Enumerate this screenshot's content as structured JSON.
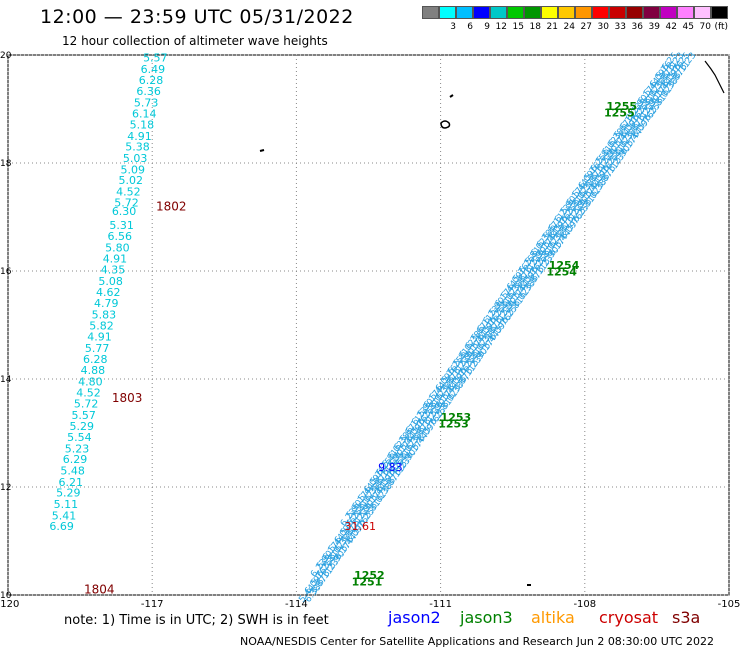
{
  "header": {
    "title": "12:00 — 23:59 UTC 05/31/2022",
    "subtitle": "12 hour collection of altimeter wave heights"
  },
  "colorbar": {
    "colors": [
      "#808080",
      "#00ffff",
      "#00bfff",
      "#0000ff",
      "#00c8c8",
      "#00c800",
      "#009600",
      "#ffff00",
      "#ffc800",
      "#ff9600",
      "#ff0000",
      "#c80000",
      "#960000",
      "#800040",
      "#c000c0",
      "#ff80ff",
      "#ffc0ff",
      "#000000"
    ],
    "labels": [
      "",
      "3",
      "6",
      "9",
      "12",
      "15",
      "18",
      "21",
      "24",
      "27",
      "30",
      "33",
      "36",
      "39",
      "42",
      "45",
      "70",
      "(ft)"
    ]
  },
  "note": "note:  1) Time is in UTC;  2) SWH is in feet",
  "legend": [
    {
      "label": "jason2",
      "color": "#0000ff"
    },
    {
      "label": "jason3",
      "color": "#008000"
    },
    {
      "label": "altika",
      "color": "#ff9900"
    },
    {
      "label": "cryosat",
      "color": "#cc0000"
    },
    {
      "label": "s3a",
      "color": "#800000"
    }
  ],
  "footer": "NOAA/NESDIS Center for Satellite Applications and Research    Jun  2 08:30:00 UTC 2022",
  "chart_data": {
    "type": "scatter",
    "xlim": [
      -120,
      -105
    ],
    "ylim": [
      10,
      20
    ],
    "x_ticks": [
      {
        "value": -120,
        "label": "-120"
      },
      {
        "value": -117,
        "label": "-117"
      },
      {
        "value": -114,
        "label": "-114"
      },
      {
        "value": -111,
        "label": "-111"
      },
      {
        "value": -108,
        "label": "-108"
      },
      {
        "value": -105,
        "label": "-105"
      }
    ],
    "y_ticks": [
      {
        "value": 10,
        "label": "10"
      },
      {
        "value": 12,
        "label": "12"
      },
      {
        "value": 14,
        "label": "14"
      },
      {
        "value": 16,
        "label": "16"
      },
      {
        "value": 18,
        "label": "18"
      },
      {
        "value": 20,
        "label": "20"
      }
    ],
    "grid": "dotted",
    "track_left": {
      "color": "#00c8d8",
      "points": [
        {
          "lon": -117.19,
          "lat": 19.88,
          "value": "5.57"
        },
        {
          "lon": -117.24,
          "lat": 19.67,
          "value": "6.49"
        },
        {
          "lon": -117.28,
          "lat": 19.46,
          "value": "6.28"
        },
        {
          "lon": -117.33,
          "lat": 19.26,
          "value": "6.36"
        },
        {
          "lon": -117.38,
          "lat": 19.05,
          "value": "5.73"
        },
        {
          "lon": -117.42,
          "lat": 18.84,
          "value": "6.14"
        },
        {
          "lon": -117.47,
          "lat": 18.64,
          "value": "5.18"
        },
        {
          "lon": -117.52,
          "lat": 18.43,
          "value": "4.91"
        },
        {
          "lon": -117.56,
          "lat": 18.23,
          "value": "5.38"
        },
        {
          "lon": -117.61,
          "lat": 18.02,
          "value": "5.03"
        },
        {
          "lon": -117.66,
          "lat": 17.81,
          "value": "5.09"
        },
        {
          "lon": -117.7,
          "lat": 17.61,
          "value": "5.02"
        },
        {
          "lon": -117.75,
          "lat": 17.4,
          "value": "4.52"
        },
        {
          "lon": -117.79,
          "lat": 17.19,
          "value": "5.72"
        },
        {
          "lon": -117.84,
          "lat": 17.04,
          "value": "6.30"
        },
        {
          "lon": -117.89,
          "lat": 16.78,
          "value": "5.31"
        },
        {
          "lon": -117.93,
          "lat": 16.57,
          "value": "6.56"
        },
        {
          "lon": -117.98,
          "lat": 16.36,
          "value": "5.80"
        },
        {
          "lon": -118.03,
          "lat": 16.16,
          "value": "4.91"
        },
        {
          "lon": -118.07,
          "lat": 15.95,
          "value": "4.35"
        },
        {
          "lon": -118.12,
          "lat": 15.74,
          "value": "5.08"
        },
        {
          "lon": -118.17,
          "lat": 15.54,
          "value": "4.62"
        },
        {
          "lon": -118.21,
          "lat": 15.33,
          "value": "4.79"
        },
        {
          "lon": -118.26,
          "lat": 15.12,
          "value": "5.83"
        },
        {
          "lon": -118.31,
          "lat": 14.92,
          "value": "5.82"
        },
        {
          "lon": -118.35,
          "lat": 14.71,
          "value": "4.91"
        },
        {
          "lon": -118.4,
          "lat": 14.5,
          "value": "5.77"
        },
        {
          "lon": -118.44,
          "lat": 14.3,
          "value": "6.28"
        },
        {
          "lon": -118.49,
          "lat": 14.09,
          "value": "4.88"
        },
        {
          "lon": -118.54,
          "lat": 13.88,
          "value": "4.80"
        },
        {
          "lon": -118.58,
          "lat": 13.68,
          "value": "4.52"
        },
        {
          "lon": -118.63,
          "lat": 13.47,
          "value": "5.72"
        },
        {
          "lon": -118.68,
          "lat": 13.26,
          "value": "5.57"
        },
        {
          "lon": -118.72,
          "lat": 13.06,
          "value": "5.29"
        },
        {
          "lon": -118.77,
          "lat": 12.85,
          "value": "5.54"
        },
        {
          "lon": -118.82,
          "lat": 12.64,
          "value": "5.23"
        },
        {
          "lon": -118.86,
          "lat": 12.44,
          "value": "6.29"
        },
        {
          "lon": -118.91,
          "lat": 12.23,
          "value": "5.48"
        },
        {
          "lon": -118.95,
          "lat": 12.02,
          "value": "6.21"
        },
        {
          "lon": -119.0,
          "lat": 11.82,
          "value": "5.29"
        },
        {
          "lon": -119.05,
          "lat": 11.61,
          "value": "5.11"
        },
        {
          "lon": -119.09,
          "lat": 11.4,
          "value": "5.41"
        },
        {
          "lon": -119.14,
          "lat": 11.2,
          "value": "6.69"
        }
      ],
      "time_labels": [
        {
          "lon": -116.92,
          "lat": 17.12,
          "text": "1802"
        },
        {
          "lon": -117.84,
          "lat": 13.57,
          "text": "1803"
        },
        {
          "lon": -118.42,
          "lat": 10.03,
          "text": "1804"
        }
      ]
    },
    "track_main": {
      "color": "#2aa0e0",
      "start": {
        "lon": -113.8,
        "lat": 10.0
      },
      "end": {
        "lon": -106.0,
        "lat": 19.85
      }
    },
    "jason3_time_labels": [
      {
        "lon": -107.55,
        "lat": 18.98,
        "text": "1255"
      },
      {
        "lon": -108.75,
        "lat": 16.04,
        "text": "1254"
      },
      {
        "lon": -111.0,
        "lat": 13.22,
        "text": "1253"
      },
      {
        "lon": -112.8,
        "lat": 10.3,
        "text": "1252"
      }
    ],
    "jason3_extra_labels": [
      {
        "lon": -107.6,
        "lat": 18.86,
        "text": "1255"
      },
      {
        "lon": -108.8,
        "lat": 15.92,
        "text": "1254"
      },
      {
        "lon": -111.05,
        "lat": 13.1,
        "text": "1253"
      },
      {
        "lon": -112.85,
        "lat": 10.18,
        "text": "1251"
      }
    ],
    "highlight_values": [
      {
        "lon": -112.3,
        "lat": 12.3,
        "text": "9.83",
        "color": "#0000ff"
      },
      {
        "lon": -113.0,
        "lat": 11.2,
        "text": "31.61",
        "color": "#cc0000"
      }
    ],
    "main_value_samples": [
      "6.23",
      "5.90",
      "6.17",
      "5.44",
      "6.09",
      "5.76",
      "6.25",
      "5.81",
      "6.02",
      "6.38",
      "5.67",
      "6.11"
    ]
  }
}
